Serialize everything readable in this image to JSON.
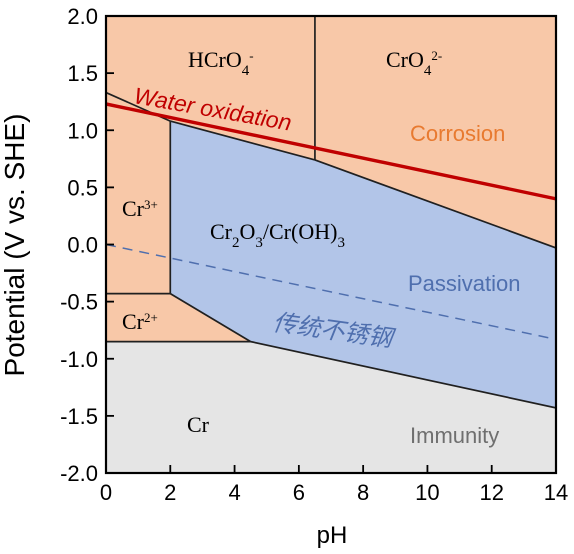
{
  "axes": {
    "xlabel": "pH",
    "ylabel": "Potential (V vs. SHE)",
    "xlim": [
      0,
      14
    ],
    "ylim": [
      -2.0,
      2.0
    ],
    "x_ticks": [
      "0",
      "2",
      "4",
      "6",
      "8",
      "10",
      "12",
      "14"
    ],
    "y_ticks": [
      "2.0",
      "1.5",
      "1.0",
      "0.5",
      "0.0",
      "-0.5",
      "-1.0",
      "-1.5",
      "-2.0"
    ]
  },
  "labels": {
    "water_oxidation": "Water oxidation",
    "corrosion": "Corrosion",
    "passivation": "Passivation",
    "immunity": "Immunity",
    "stainless_steel": "传统不锈钢",
    "cr": "Cr",
    "cr3_base": "Cr",
    "cr3_sup": "3+",
    "cr2_base": "Cr",
    "cr2_sup": "2+",
    "hcro4_a": "HCrO",
    "hcro4_sub": "4",
    "hcro4_sup": "-",
    "cro4_a": "CrO",
    "cro4_sub": "4",
    "cro4_sup": "2-",
    "oxide_a": "Cr",
    "oxide_sub1": "2",
    "oxide_b": "O",
    "oxide_sub2": "3",
    "oxide_c": "/Cr(OH)",
    "oxide_sub3": "3"
  },
  "colors": {
    "corrosion_fill": "#f8c8a8",
    "passivation_fill": "#b2c5e8",
    "immunity_fill": "#e5e5e5",
    "water_line": "#c00000",
    "water_text": "#c00000",
    "corrosion_text": "#e87a30",
    "passivation_text": "#4f6fae",
    "immunity_text": "#6f6f6f",
    "stainless_text": "#4f6fae",
    "dashed_passive_line": "#4f6fae",
    "axis_color": "#000000"
  },
  "chart_data": {
    "type": "diagram",
    "xlabel": "pH",
    "ylabel": "Potential (V vs. SHE)",
    "xlim": [
      0,
      14
    ],
    "ylim": [
      -2.0,
      2.0
    ],
    "regions": [
      {
        "name": "immunity",
        "points": [
          [
            0,
            -0.85
          ],
          [
            4.5,
            -0.85
          ],
          [
            14,
            -1.43
          ],
          [
            14,
            -2.0
          ],
          [
            0,
            -2.0
          ]
        ]
      },
      {
        "name": "passivation",
        "points": [
          [
            2.0,
            1.08
          ],
          [
            6.5,
            0.74
          ],
          [
            14,
            -0.03
          ],
          [
            14,
            -1.43
          ],
          [
            4.5,
            -0.85
          ],
          [
            2.0,
            -0.43
          ]
        ]
      }
    ],
    "boundaries": [
      {
        "name": "vertical-hcro4-cro4",
        "points": [
          [
            6.5,
            2.0
          ],
          [
            6.5,
            0.74
          ]
        ]
      },
      {
        "name": "cr3-top",
        "points": [
          [
            0,
            1.33
          ],
          [
            2.0,
            1.08
          ]
        ]
      },
      {
        "name": "cr3-right",
        "points": [
          [
            2.0,
            1.08
          ],
          [
            2.0,
            -0.43
          ]
        ]
      },
      {
        "name": "cr3-cr2",
        "points": [
          [
            0,
            -0.43
          ],
          [
            2.0,
            -0.43
          ]
        ]
      },
      {
        "name": "passivation-top-1",
        "points": [
          [
            2.0,
            1.08
          ],
          [
            6.5,
            0.74
          ]
        ]
      },
      {
        "name": "passivation-top-2",
        "points": [
          [
            6.5,
            0.74
          ],
          [
            14,
            -0.03
          ]
        ]
      },
      {
        "name": "passivation-bottom",
        "points": [
          [
            2.0,
            -0.43
          ],
          [
            4.5,
            -0.85
          ],
          [
            14,
            -1.43
          ]
        ]
      },
      {
        "name": "immunity-top",
        "points": [
          [
            0,
            -0.85
          ],
          [
            4.5,
            -0.85
          ]
        ]
      }
    ],
    "lines": [
      {
        "name": "water-oxidation",
        "points": [
          [
            0,
            1.23
          ],
          [
            14,
            0.4
          ]
        ],
        "style": "solid"
      },
      {
        "name": "passive-guide",
        "points": [
          [
            0,
            0.0
          ],
          [
            14,
            -0.83
          ]
        ],
        "style": "dashed"
      }
    ]
  }
}
